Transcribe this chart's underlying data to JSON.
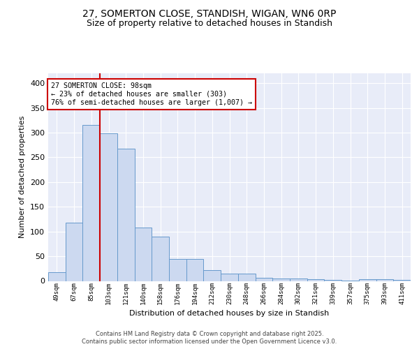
{
  "title1": "27, SOMERTON CLOSE, STANDISH, WIGAN, WN6 0RP",
  "title2": "Size of property relative to detached houses in Standish",
  "xlabel": "Distribution of detached houses by size in Standish",
  "ylabel": "Number of detached properties",
  "bar_labels": [
    "49sqm",
    "67sqm",
    "85sqm",
    "103sqm",
    "121sqm",
    "140sqm",
    "158sqm",
    "176sqm",
    "194sqm",
    "212sqm",
    "230sqm",
    "248sqm",
    "266sqm",
    "284sqm",
    "302sqm",
    "321sqm",
    "339sqm",
    "357sqm",
    "375sqm",
    "393sqm",
    "411sqm"
  ],
  "bar_values": [
    18,
    118,
    315,
    298,
    268,
    108,
    90,
    44,
    44,
    22,
    15,
    15,
    7,
    5,
    5,
    4,
    2,
    1,
    3,
    3,
    2
  ],
  "bar_color": "#ccd9f0",
  "bar_edge_color": "#6699cc",
  "vline_color": "#cc0000",
  "vline_pos": 2.5,
  "annotation_text": "27 SOMERTON CLOSE: 98sqm\n← 23% of detached houses are smaller (303)\n76% of semi-detached houses are larger (1,007) →",
  "annotation_box_color": "#ffffff",
  "annotation_box_edge_color": "#cc0000",
  "ylim": [
    0,
    420
  ],
  "yticks": [
    0,
    50,
    100,
    150,
    200,
    250,
    300,
    350,
    400
  ],
  "bg_color": "#e8ecf8",
  "grid_color": "#ffffff",
  "footer1": "Contains HM Land Registry data © Crown copyright and database right 2025.",
  "footer2": "Contains public sector information licensed under the Open Government Licence v3.0."
}
